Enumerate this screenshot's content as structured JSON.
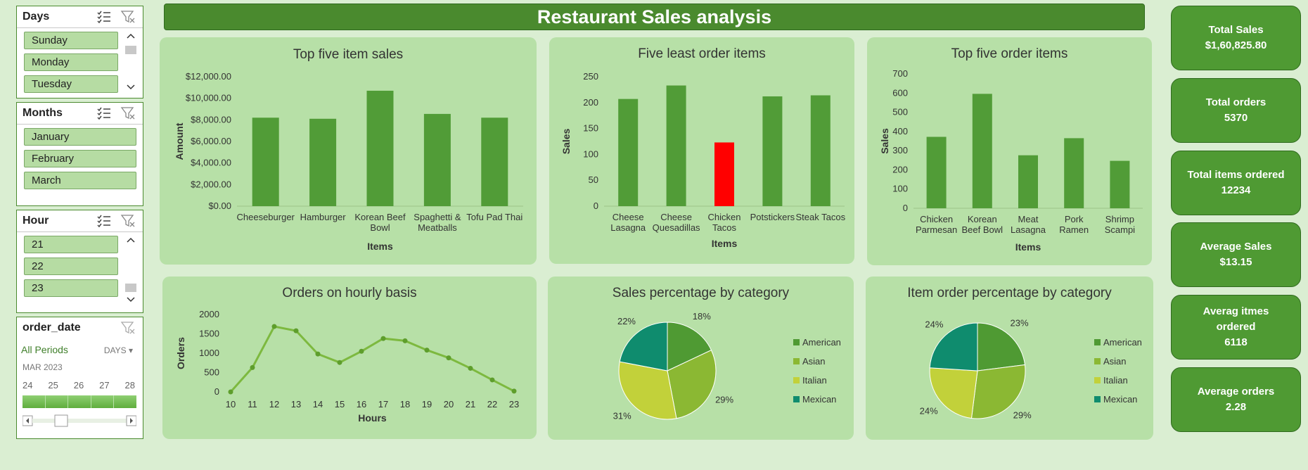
{
  "title": "Restaurant Sales analysis",
  "slicers": {
    "days": {
      "header": "Days",
      "items": [
        "Sunday",
        "Monday",
        "Tuesday"
      ]
    },
    "months": {
      "header": "Months",
      "items": [
        "January",
        "February",
        "March"
      ]
    },
    "hour": {
      "header": "Hour",
      "items": [
        "21",
        "22",
        "23"
      ]
    },
    "timeline": {
      "header": "order_date",
      "periods": "All Periods",
      "unit": "DAYS",
      "month": "MAR 2023",
      "days": [
        "24",
        "25",
        "26",
        "27",
        "28"
      ]
    }
  },
  "kpis": [
    {
      "label": "Total Sales",
      "value": "$1,60,825.80"
    },
    {
      "label": "Total orders",
      "value": "5370"
    },
    {
      "label": "Total items ordered",
      "value": "12234"
    },
    {
      "label": "Average Sales",
      "value": "$13.15"
    },
    {
      "label": "Averag itmes ordered",
      "value": "6118"
    },
    {
      "label": "Average orders",
      "value": "2.28"
    }
  ],
  "colors": {
    "bar": "#519c37",
    "highlight": "#ff0000",
    "american": "#4f9a33",
    "asian": "#8bb833",
    "italian": "#c2d13a",
    "mexican": "#0f8c6e"
  },
  "chart_data": [
    {
      "type": "bar",
      "title": "Top five item sales",
      "xlabel": "Items",
      "ylabel": "Amount",
      "categories": [
        "Cheeseburger",
        "Hamburger",
        "Korean Beef Bowl",
        "Spaghetti & Meatballs",
        "Tofu Pad Thai"
      ],
      "values": [
        8200,
        8100,
        10700,
        8550,
        8200
      ],
      "ylim": [
        0,
        12000
      ],
      "yticks": [
        "$0.00",
        "$2,000.00",
        "$4,000.00",
        "$6,000.00",
        "$8,000.00",
        "$10,000.00",
        "$12,000.00"
      ]
    },
    {
      "type": "bar",
      "title": "Five least order items",
      "xlabel": "Items",
      "ylabel": "Sales",
      "categories": [
        "Cheese Lasagna",
        "Cheese Quesadillas",
        "Chicken Tacos",
        "Potstickers",
        "Steak Tacos"
      ],
      "values": [
        207,
        233,
        123,
        212,
        214
      ],
      "highlight_index": 2,
      "ylim": [
        0,
        250
      ],
      "yticks": [
        "0",
        "50",
        "100",
        "150",
        "200",
        "250"
      ]
    },
    {
      "type": "bar",
      "title": "Top five order items",
      "xlabel": "Items",
      "ylabel": "Sales",
      "categories": [
        "Chicken Parmesan",
        "Korean Beef Bowl",
        "Meat Lasagna",
        "Pork Ramen",
        "Shrimp Scampi"
      ],
      "values": [
        372,
        596,
        276,
        365,
        247
      ],
      "ylim": [
        0,
        700
      ],
      "yticks": [
        "0",
        "100",
        "200",
        "300",
        "400",
        "500",
        "600",
        "700"
      ]
    },
    {
      "type": "line",
      "title": "Orders on hourly basis",
      "xlabel": "Hours",
      "ylabel": "Orders",
      "x": [
        10,
        11,
        12,
        13,
        14,
        15,
        16,
        17,
        18,
        19,
        20,
        21,
        22,
        23
      ],
      "values": [
        0,
        630,
        1690,
        1580,
        980,
        760,
        1050,
        1380,
        1320,
        1080,
        880,
        610,
        310,
        20
      ],
      "ylim": [
        0,
        2000
      ],
      "yticks": [
        "0",
        "500",
        "1000",
        "1500",
        "2000"
      ]
    },
    {
      "type": "pie",
      "title": "Sales percentage by category",
      "labels": [
        "American",
        "Asian",
        "Italian",
        "Mexican"
      ],
      "values": [
        18,
        29,
        31,
        22
      ],
      "value_labels": [
        "18%",
        "29%",
        "31%",
        "22%"
      ]
    },
    {
      "type": "pie",
      "title": "Item order percentage by category",
      "labels": [
        "American",
        "Asian",
        "Italian",
        "Mexican"
      ],
      "values": [
        23,
        29,
        24,
        24
      ],
      "value_labels": [
        "23%",
        "29%",
        "24%",
        "24%"
      ]
    }
  ]
}
